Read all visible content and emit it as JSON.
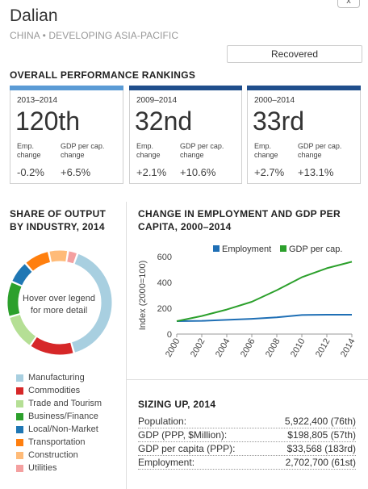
{
  "header": {
    "city": "Dalian",
    "subtitle": "CHINA • DEVELOPING ASIA-PACIFIC",
    "status": "Recovered",
    "close_icon": "x"
  },
  "rankings": {
    "title": "OVERALL PERFORMANCE RANKINGS",
    "cards": [
      {
        "period": "2013–2014",
        "rank": "120th",
        "emp_label": "Emp. change",
        "gdp_label": "GDP per cap. change",
        "emp_change": "-0.2%",
        "gdp_change": "+6.5%",
        "color": "#5b9bd5"
      },
      {
        "period": "2009–2014",
        "rank": "32nd",
        "emp_label": "Emp. change",
        "gdp_label": "GDP per cap. change",
        "emp_change": "+2.1%",
        "gdp_change": "+10.6%",
        "color": "#1f4e8c"
      },
      {
        "period": "2000–2014",
        "rank": "33rd",
        "emp_label": "Emp. change",
        "gdp_label": "GDP per cap. change",
        "emp_change": "+2.7%",
        "gdp_change": "+13.1%",
        "color": "#1f4e8c"
      }
    ]
  },
  "share": {
    "title_line1": "SHARE OF OUTPUT",
    "title_line2": "BY INDUSTRY, 2014",
    "center_line1": "Hover over legend",
    "center_line2": "for more detail",
    "legend": [
      {
        "label": "Manufacturing",
        "color": "#a8cfe0"
      },
      {
        "label": "Commodities",
        "color": "#d62728"
      },
      {
        "label": "Trade and Tourism",
        "color": "#b5df95"
      },
      {
        "label": "Business/Finance",
        "color": "#2ca02c"
      },
      {
        "label": "Local/Non-Market",
        "color": "#1f77b4"
      },
      {
        "label": "Transportation",
        "color": "#ff7f0e"
      },
      {
        "label": "Construction",
        "color": "#ffbb78"
      },
      {
        "label": "Utilities",
        "color": "#f4a0a0"
      }
    ]
  },
  "change": {
    "title_line1": "CHANGE IN EMPLOYMENT AND GDP PER",
    "title_line2": "CAPITA, 2000–2014"
  },
  "sizing": {
    "title": "SIZING UP, 2014",
    "rows": [
      {
        "label": "Population:",
        "value": "5,922,400 (76th)"
      },
      {
        "label": "GDP (PPP, $Million):",
        "value": "$198,805 (57th)"
      },
      {
        "label": "GDP per capita (PPP):",
        "value": "$33,568 (183rd)"
      },
      {
        "label": "Employment:",
        "value": "2,702,700 (61st)"
      }
    ]
  },
  "chart_data": [
    {
      "type": "pie",
      "variant": "donut",
      "categories": [
        "Manufacturing",
        "Commodities",
        "Trade and Tourism",
        "Business/Finance",
        "Local/Non-Market",
        "Transportation",
        "Construction",
        "Utilities"
      ],
      "values": [
        40,
        14,
        11,
        11,
        7,
        8,
        6,
        3
      ]
    },
    {
      "type": "line",
      "x": [
        2000,
        2002,
        2004,
        2006,
        2008,
        2010,
        2012,
        2014
      ],
      "xticks": [
        "2000",
        "2002",
        "2004",
        "2006",
        "2008",
        "2010",
        "2012",
        "2014"
      ],
      "ylabel": "Index (2000=100)",
      "ylim": [
        0,
        600
      ],
      "yticks": [
        "0",
        "200",
        "400",
        "600"
      ],
      "legend_position": "top",
      "grid": false,
      "series": [
        {
          "name": "Employment",
          "color": "#1f6fb5",
          "values": [
            100,
            102,
            110,
            118,
            130,
            148,
            150,
            150
          ]
        },
        {
          "name": "GDP per cap.",
          "color": "#2ca02c",
          "values": [
            100,
            140,
            190,
            250,
            340,
            440,
            510,
            560
          ]
        }
      ]
    }
  ]
}
